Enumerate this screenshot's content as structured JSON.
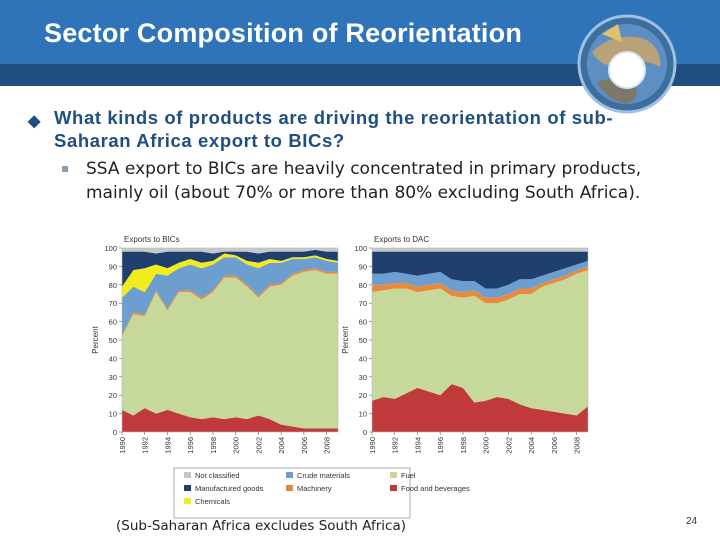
{
  "slide": {
    "title": "Sector Composition of Reorientation",
    "bullet_main": "What kinds of products are driving the reorientation of sub-Saharan Africa export to BICs?",
    "bullet_sub": "SSA export to BICs are heavily concentrated in primary products, mainly oil (about 70% or more than 80% excluding South Africa).",
    "caption": "(Sub-Saharan Africa excludes South Africa)",
    "page_number": "24"
  },
  "colors": {
    "header": "#2f74b8",
    "band": "#1f4e80",
    "not_classified": "#c8c8c8",
    "manufactured": "#1f3f6e",
    "chemicals": "#f3ec1b",
    "crude": "#6c9fcf",
    "machinery": "#e88a3c",
    "fuel": "#c6d89a",
    "food": "#c0393b"
  },
  "chart_data": [
    {
      "type": "area",
      "title": "Exports to BICs",
      "xlabel": "",
      "ylabel": "Percent",
      "ylim": [
        0,
        100
      ],
      "yticks": [
        0,
        10,
        20,
        30,
        40,
        50,
        60,
        70,
        80,
        90,
        100
      ],
      "x": [
        1990,
        1991,
        1992,
        1993,
        1994,
        1995,
        1996,
        1997,
        1998,
        1999,
        2000,
        2001,
        2002,
        2003,
        2004,
        2005,
        2006,
        2007,
        2008,
        2009
      ],
      "xtick_labels": [
        "1990",
        "1992",
        "1994",
        "1996",
        "1998",
        "2000",
        "2002",
        "2004",
        "2006",
        "2008"
      ],
      "series": [
        {
          "name": "Food and beverages",
          "values": [
            12,
            9,
            13,
            10,
            12,
            10,
            8,
            7,
            8,
            7,
            8,
            7,
            9,
            7,
            4,
            3,
            2,
            2,
            2,
            2
          ]
        },
        {
          "name": "Fuel",
          "values": [
            40,
            55,
            50,
            66,
            54,
            66,
            68,
            65,
            68,
            77,
            76,
            72,
            64,
            72,
            76,
            82,
            85,
            86,
            84,
            84
          ]
        },
        {
          "name": "Machinery",
          "values": [
            1,
            1,
            1,
            1,
            1,
            1,
            1,
            1,
            1,
            1,
            1,
            1,
            1,
            1,
            1,
            1,
            1,
            1,
            1,
            1
          ]
        },
        {
          "name": "Crude materials",
          "values": [
            20,
            14,
            12,
            9,
            18,
            12,
            14,
            16,
            14,
            10,
            10,
            11,
            15,
            12,
            11,
            8,
            6,
            6,
            6,
            5
          ]
        },
        {
          "name": "Chemicals",
          "values": [
            6,
            9,
            13,
            5,
            4,
            3,
            3,
            3,
            2,
            2,
            1,
            2,
            3,
            2,
            1,
            1,
            1,
            1,
            1,
            1
          ]
        },
        {
          "name": "Manufactured goods",
          "values": [
            19,
            10,
            9,
            6,
            9,
            6,
            4,
            6,
            4,
            1,
            2,
            5,
            5,
            4,
            5,
            3,
            3,
            3,
            4,
            5
          ]
        },
        {
          "name": "Not classified",
          "values": [
            2,
            2,
            2,
            3,
            2,
            2,
            2,
            2,
            3,
            2,
            2,
            2,
            3,
            2,
            2,
            2,
            2,
            1,
            2,
            2
          ]
        }
      ]
    },
    {
      "type": "area",
      "title": "Exports to DAC",
      "xlabel": "",
      "ylabel": "Percent",
      "ylim": [
        0,
        100
      ],
      "yticks": [
        0,
        10,
        20,
        30,
        40,
        50,
        60,
        70,
        80,
        90,
        100
      ],
      "x": [
        1990,
        1991,
        1992,
        1993,
        1994,
        1995,
        1996,
        1997,
        1998,
        1999,
        2000,
        2001,
        2002,
        2003,
        2004,
        2005,
        2006,
        2007,
        2008,
        2009
      ],
      "xtick_labels": [
        "1990",
        "1992",
        "1994",
        "1996",
        "1998",
        "2000",
        "2002",
        "2004",
        "2006",
        "2008"
      ],
      "series": [
        {
          "name": "Food and beverages",
          "values": [
            17,
            19,
            18,
            21,
            24,
            22,
            20,
            26,
            24,
            16,
            17,
            19,
            18,
            15,
            13,
            12,
            11,
            10,
            9,
            14
          ]
        },
        {
          "name": "Fuel",
          "values": [
            59,
            58,
            60,
            57,
            52,
            55,
            58,
            48,
            49,
            58,
            53,
            51,
            54,
            60,
            62,
            67,
            70,
            73,
            77,
            74
          ]
        },
        {
          "name": "Machinery",
          "values": [
            4,
            3,
            3,
            3,
            3,
            3,
            3,
            3,
            3,
            3,
            3,
            3,
            3,
            3,
            3,
            2,
            2,
            2,
            2,
            2
          ]
        },
        {
          "name": "Crude materials",
          "values": [
            6,
            6,
            6,
            5,
            6,
            6,
            6,
            6,
            6,
            5,
            5,
            5,
            5,
            5,
            5,
            4,
            4,
            4,
            3,
            3
          ]
        },
        {
          "name": "Chemicals",
          "values": [
            0,
            0,
            0,
            0,
            0,
            0,
            0,
            0,
            0,
            0,
            0,
            0,
            0,
            0,
            0,
            0,
            0,
            0,
            0,
            0
          ]
        },
        {
          "name": "Manufactured goods",
          "values": [
            12,
            12,
            11,
            12,
            13,
            12,
            11,
            15,
            16,
            16,
            20,
            20,
            18,
            15,
            15,
            13,
            11,
            9,
            7,
            5
          ]
        },
        {
          "name": "Not classified",
          "values": [
            2,
            2,
            2,
            2,
            2,
            2,
            2,
            2,
            2,
            2,
            2,
            2,
            2,
            2,
            2,
            2,
            2,
            2,
            2,
            2
          ]
        }
      ]
    }
  ],
  "legend": [
    {
      "label": "Not classified",
      "color": "#c8c8c8"
    },
    {
      "label": "Crude materials",
      "color": "#6c9fcf"
    },
    {
      "label": "Fuel",
      "color": "#c6d89a"
    },
    {
      "label": "Manufactured goods",
      "color": "#1f3f6e"
    },
    {
      "label": "Machinery",
      "color": "#e88a3c"
    },
    {
      "label": "Food and beverages",
      "color": "#c0393b"
    },
    {
      "label": "Chemicals",
      "color": "#f3ec1b"
    }
  ]
}
